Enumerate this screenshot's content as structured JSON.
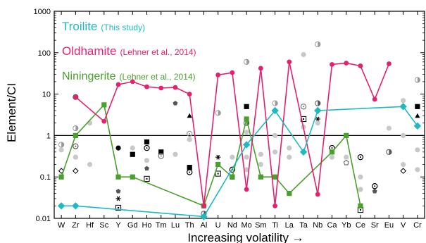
{
  "chart_data": {
    "type": "line",
    "xlabel": "Increasing volatility →",
    "ylabel": "Element/CI",
    "yscale": "log",
    "ylim": [
      0.01,
      1000
    ],
    "y_tick_labels": [
      "0.01",
      "0.1",
      "1",
      "10",
      "100",
      "1000"
    ],
    "y_tick_values": [
      0.01,
      0.1,
      1,
      10,
      100,
      1000
    ],
    "reference_line_y": 1,
    "categories": [
      "W",
      "Zr",
      "Hf",
      "Sc",
      "Y",
      "Gd",
      "Ho",
      "Tm",
      "Lu",
      "Th",
      "Al",
      "U",
      "Nd",
      "Mo",
      "Sm",
      "Ti",
      "La",
      "Ta",
      "Nb",
      "Ca",
      "Yb",
      "Ce",
      "Sr",
      "Eu",
      "V",
      "Cr"
    ],
    "legend_placement": "top-left",
    "series": [
      {
        "name": "Troilite",
        "citation": "(This study)",
        "color": "#1fb9c4",
        "marker": "diamond",
        "points": [
          {
            "x": "W",
            "y": 0.02
          },
          {
            "x": "Zr",
            "y": 0.02
          },
          {
            "x": "Al",
            "y": 0.011
          },
          {
            "x": "Mo",
            "y": 0.6
          },
          {
            "x": "Ti",
            "y": 4
          },
          {
            "x": "Ta",
            "y": 0.4
          },
          {
            "x": "Nb",
            "y": 4
          },
          {
            "x": "V",
            "y": 5
          },
          {
            "x": "Cr",
            "y": 1.7
          }
        ]
      },
      {
        "name": "Oldhamite",
        "citation": "(Lehner et al., 2014)",
        "color": "#e6206e",
        "marker": "circle",
        "points": [
          {
            "x": "Zr",
            "y": 8.5
          },
          {
            "x": "Sc",
            "y": 2.2
          },
          {
            "x": "Y",
            "y": 17
          },
          {
            "x": "Gd",
            "y": 20
          },
          {
            "x": "Ho",
            "y": 15
          },
          {
            "x": "Tm",
            "y": 14
          },
          {
            "x": "Lu",
            "y": 14.5
          },
          {
            "x": "Th",
            "y": 10
          },
          {
            "x": "Al",
            "y": 0.02
          },
          {
            "x": "U",
            "y": 29
          },
          {
            "x": "Nd",
            "y": 33
          },
          {
            "x": "Mo",
            "y": 0.05
          },
          {
            "x": "Sm",
            "y": 42
          },
          {
            "x": "Ti",
            "y": 0.02
          },
          {
            "x": "La",
            "y": 60
          },
          {
            "x": "Nb",
            "y": 0.038
          },
          {
            "x": "Ca",
            "y": 52
          },
          {
            "x": "Yb",
            "y": 56
          },
          {
            "x": "Ce",
            "y": 48
          },
          {
            "x": "Sr",
            "y": 7.5
          },
          {
            "x": "Eu",
            "y": 54
          }
        ]
      },
      {
        "name": "Niningerite",
        "citation": "(Lehner et al., 2014)",
        "color": "#4aa02c",
        "marker": "square",
        "points": [
          {
            "x": "W",
            "y": 0.1
          },
          {
            "x": "Zr",
            "y": 1
          },
          {
            "x": "Sc",
            "y": 5.5
          },
          {
            "x": "Y",
            "y": 0.1
          },
          {
            "x": "Gd",
            "y": 0.1
          },
          {
            "x": "Al",
            "y": 0.02
          },
          {
            "x": "U",
            "y": 0.2
          },
          {
            "x": "Nd",
            "y": 0.1
          },
          {
            "x": "Mo",
            "y": 2.5
          },
          {
            "x": "Sm",
            "y": 0.1
          },
          {
            "x": "Ti",
            "y": 0.1
          },
          {
            "x": "La",
            "y": 0.04
          },
          {
            "x": "Ca",
            "y": 0.4
          },
          {
            "x": "Yb",
            "y": 1
          },
          {
            "x": "Ce",
            "y": 0.02
          }
        ]
      }
    ],
    "background_points": [
      {
        "x": "W",
        "y": 0.6,
        "marker": "half-circle",
        "color": "#9a9a9a"
      },
      {
        "x": "W",
        "y": 0.14,
        "marker": "open-diamond",
        "color": "#000000"
      },
      {
        "x": "W",
        "y": 0.45,
        "marker": "filled-circle",
        "color": "#c8c8c8"
      },
      {
        "x": "Zr",
        "y": 8.5,
        "marker": "half-circle",
        "color": "#555555"
      },
      {
        "x": "Zr",
        "y": 1.5,
        "marker": "half-circle",
        "color": "#999999"
      },
      {
        "x": "Zr",
        "y": 0.55,
        "marker": "open-circle",
        "color": "#555555"
      },
      {
        "x": "Zr",
        "y": 0.3,
        "marker": "filled-circle",
        "color": "#c8c8c8"
      },
      {
        "x": "Zr",
        "y": 0.14,
        "marker": "open-diamond",
        "color": "#000000"
      },
      {
        "x": "Hf",
        "y": 0.2,
        "marker": "filled-circle",
        "color": "#c8c8c8"
      },
      {
        "x": "Hf",
        "y": 2,
        "marker": "filled-circle",
        "color": "#c8c8c8"
      },
      {
        "x": "Y",
        "y": 0.5,
        "marker": "filled-circle",
        "color": "#000000"
      },
      {
        "x": "Y",
        "y": 0.045,
        "marker": "pentagon",
        "color": "#555555"
      },
      {
        "x": "Y",
        "y": 0.03,
        "marker": "asterisk",
        "color": "#000000"
      },
      {
        "x": "Y",
        "y": 0.018,
        "marker": "open-square",
        "color": "#000000"
      },
      {
        "x": "Gd",
        "y": 0.5,
        "marker": "filled-circle",
        "color": "#c8c8c8"
      },
      {
        "x": "Gd",
        "y": 0.35,
        "marker": "filled-square",
        "color": "#000000"
      },
      {
        "x": "Ho",
        "y": 0.7,
        "marker": "filled-square",
        "color": "#000000"
      },
      {
        "x": "Ho",
        "y": 0.5,
        "marker": "open-circle",
        "color": "#000000"
      },
      {
        "x": "Ho",
        "y": 0.25,
        "marker": "filled-circle",
        "color": "#c8c8c8"
      },
      {
        "x": "Ho",
        "y": 0.16,
        "marker": "pentagon",
        "color": "#555555"
      },
      {
        "x": "Ho",
        "y": 0.09,
        "marker": "open-square",
        "color": "#000000"
      },
      {
        "x": "Tm",
        "y": 0.4,
        "marker": "filled-square",
        "color": "#000000"
      },
      {
        "x": "Tm",
        "y": 0.32,
        "marker": "open-circle",
        "color": "#777777"
      },
      {
        "x": "Lu",
        "y": 6,
        "marker": "pentagon",
        "color": "#555555"
      },
      {
        "x": "Lu",
        "y": 0.35,
        "marker": "filled-circle",
        "color": "#c8c8c8"
      },
      {
        "x": "Th",
        "y": 1.1,
        "marker": "open-circle",
        "color": "#999999"
      },
      {
        "x": "Th",
        "y": 0.8,
        "marker": "filled-circle",
        "color": "#c8c8c8"
      },
      {
        "x": "Th",
        "y": 0.17,
        "marker": "filled-square",
        "color": "#000000"
      },
      {
        "x": "Th",
        "y": 0.13,
        "marker": "open-circle",
        "color": "#000000"
      },
      {
        "x": "Th",
        "y": 3,
        "marker": "triangle",
        "color": "#000000"
      },
      {
        "x": "Al",
        "y": 0.013,
        "marker": "half-circle",
        "color": "#555555"
      },
      {
        "x": "U",
        "y": 3.5,
        "marker": "half-circle",
        "color": "#999999"
      },
      {
        "x": "U",
        "y": 0.3,
        "marker": "asterisk",
        "color": "#000000"
      },
      {
        "x": "U",
        "y": 0.12,
        "marker": "open-square",
        "color": "#000000"
      },
      {
        "x": "Nd",
        "y": 0.3,
        "marker": "filled-circle",
        "color": "#c8c8c8"
      },
      {
        "x": "Nd",
        "y": 0.15,
        "marker": "open-circle",
        "color": "#000000"
      },
      {
        "x": "Nd",
        "y": 0.1,
        "marker": "filled-square",
        "color": "#000000"
      },
      {
        "x": "Mo",
        "y": 60,
        "marker": "half-circle",
        "color": "#999999"
      },
      {
        "x": "Mo",
        "y": 5,
        "marker": "filled-square",
        "color": "#000000"
      },
      {
        "x": "Mo",
        "y": 2,
        "marker": "half-circle",
        "color": "#555555"
      },
      {
        "x": "Mo",
        "y": 1.2,
        "marker": "filled-circle",
        "color": "#c8c8c8"
      },
      {
        "x": "Mo",
        "y": 0.3,
        "marker": "filled-circle",
        "color": "#c8c8c8"
      },
      {
        "x": "Mo",
        "y": 0.15,
        "marker": "filled-circle",
        "color": "#c8c8c8"
      },
      {
        "x": "Sm",
        "y": 0.35,
        "marker": "filled-circle",
        "color": "#c8c8c8"
      },
      {
        "x": "Sm",
        "y": 0.2,
        "marker": "filled-circle",
        "color": "#c8c8c8"
      },
      {
        "x": "Ti",
        "y": 6,
        "marker": "half-circle",
        "color": "#999999"
      },
      {
        "x": "Ti",
        "y": 1,
        "marker": "filled-circle",
        "color": "#c8c8c8"
      },
      {
        "x": "Ti",
        "y": 0.4,
        "marker": "filled-circle",
        "color": "#c8c8c8"
      },
      {
        "x": "La",
        "y": 0.5,
        "marker": "filled-circle",
        "color": "#c8c8c8"
      },
      {
        "x": "La",
        "y": 0.3,
        "marker": "filled-circle",
        "color": "#c8c8c8"
      },
      {
        "x": "Ta",
        "y": 90,
        "marker": "filled-circle",
        "color": "#c8c8c8"
      },
      {
        "x": "Ta",
        "y": 5,
        "marker": "open-circle",
        "color": "#777777"
      },
      {
        "x": "Ta",
        "y": 2.5,
        "marker": "open-square",
        "color": "#000000"
      },
      {
        "x": "Ta",
        "y": 1.6,
        "marker": "filled-circle",
        "color": "#c8c8c8"
      },
      {
        "x": "Nb",
        "y": 160,
        "marker": "half-circle",
        "color": "#999999"
      },
      {
        "x": "Nb",
        "y": 6,
        "marker": "half-circle",
        "color": "#555555"
      },
      {
        "x": "Nb",
        "y": 2.5,
        "marker": "asterisk",
        "color": "#000000"
      },
      {
        "x": "Nb",
        "y": 2,
        "marker": "filled-circle",
        "color": "#c8c8c8"
      },
      {
        "x": "Ca",
        "y": 0.5,
        "marker": "open-circle",
        "color": "#000000"
      },
      {
        "x": "Ca",
        "y": 0.3,
        "marker": "filled-circle",
        "color": "#c8c8c8"
      },
      {
        "x": "Yb",
        "y": 0.22,
        "marker": "pentagon-open",
        "color": "#555555"
      },
      {
        "x": "Yb",
        "y": 0.3,
        "marker": "filled-circle",
        "color": "#c8c8c8"
      },
      {
        "x": "Ce",
        "y": 0.3,
        "marker": "open-circle",
        "color": "#000000"
      },
      {
        "x": "Ce",
        "y": 0.1,
        "marker": "filled-circle",
        "color": "#c8c8c8"
      },
      {
        "x": "Ce",
        "y": 0.05,
        "marker": "filled-circle",
        "color": "#c8c8c8"
      },
      {
        "x": "Ce",
        "y": 0.016,
        "marker": "open-square",
        "color": "#000000"
      },
      {
        "x": "Sr",
        "y": 0.045,
        "marker": "pentagon",
        "color": "#555555"
      },
      {
        "x": "Sr",
        "y": 0.06,
        "marker": "open-circle",
        "color": "#000000"
      },
      {
        "x": "Eu",
        "y": 1.5,
        "marker": "filled-circle",
        "color": "#c8c8c8"
      },
      {
        "x": "Eu",
        "y": 0.4,
        "marker": "half-circle",
        "color": "#555555"
      },
      {
        "x": "V",
        "y": 7,
        "marker": "filled-circle",
        "color": "#c8c8c8"
      },
      {
        "x": "V",
        "y": 1,
        "marker": "filled-circle",
        "color": "#c8c8c8"
      },
      {
        "x": "V",
        "y": 0.2,
        "marker": "filled-circle",
        "color": "#c8c8c8"
      },
      {
        "x": "V",
        "y": 0.14,
        "marker": "open-diamond",
        "color": "#000000"
      },
      {
        "x": "Cr",
        "y": 22,
        "marker": "half-circle",
        "color": "#999999"
      },
      {
        "x": "Cr",
        "y": 5,
        "marker": "filled-square",
        "color": "#000000"
      },
      {
        "x": "Cr",
        "y": 3,
        "marker": "triangle",
        "color": "#000000"
      },
      {
        "x": "Cr",
        "y": 0.45,
        "marker": "filled-circle",
        "color": "#c8c8c8"
      },
      {
        "x": "Cr",
        "y": 0.15,
        "marker": "filled-circle",
        "color": "#c8c8c8"
      }
    ]
  }
}
